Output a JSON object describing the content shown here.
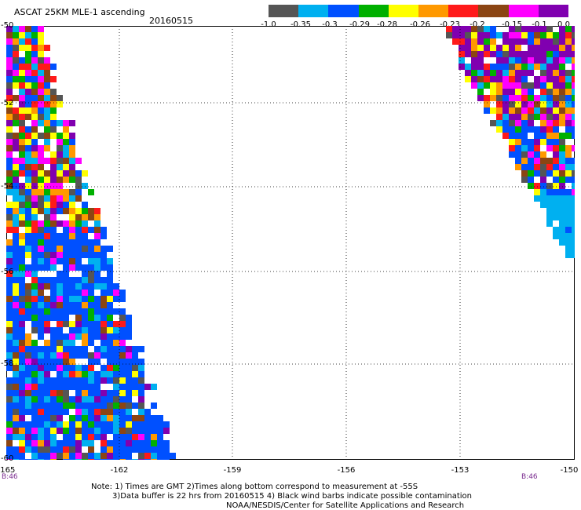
{
  "header": {
    "title": "ASCAT 25KM MLE-1 ascending",
    "date": "20160515"
  },
  "colorbar": {
    "colors": [
      "#555555",
      "#00b0f0",
      "#0050ff",
      "#00b000",
      "#ffff00",
      "#ff9900",
      "#ff1a1a",
      "#8b4513",
      "#ff00ff",
      "#8000b0"
    ],
    "labels": [
      "-1.0",
      "-0.35",
      "-0.3",
      "-0.29",
      "-0.28",
      "-0.26",
      "-0.23",
      "-0.2",
      "-0.15",
      "-0.1",
      "0.0"
    ]
  },
  "axes": {
    "x_ticks": [
      "-165",
      "-162",
      "-159",
      "-156",
      "-153",
      "-150"
    ],
    "y_ticks": [
      "-50",
      "-52",
      "-54",
      "-56",
      "-58",
      "-60"
    ],
    "time_labels": [
      "B:46",
      "B:46"
    ]
  },
  "notes": {
    "line1": "Note: 1) Times are GMT 2)Times along bottom correspond to measurement at -55S",
    "line2": "3)Data buffer is 22 hrs from 20160515 4) Black wind barbs indicate possible contamination",
    "line3": "NOAA/NESDIS/Center for Satellite Applications and Research"
  },
  "map": {
    "lon_range": [
      -165,
      -150
    ],
    "lat_range": [
      -60,
      -50
    ],
    "grid": true,
    "swaths": [
      "left-swath",
      "right-swath"
    ]
  }
}
